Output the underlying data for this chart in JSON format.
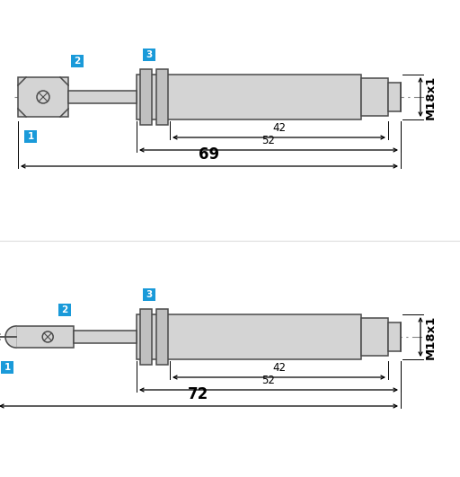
{
  "bg_color": "#ffffff",
  "line_color": "#000000",
  "fill_color": "#d4d4d4",
  "ring_fill": "#c0c0c0",
  "border_color": "#4a4a4a",
  "badge_color": "#1a9ad9",
  "badge_text_color": "#ffffff",
  "top": {
    "label_total": "69",
    "label_42": "42",
    "label_52": "52",
    "m18_label": "M18x1"
  },
  "bot": {
    "label_total": "72",
    "label_42": "42",
    "label_52": "52",
    "m18_label": "M18x1"
  }
}
